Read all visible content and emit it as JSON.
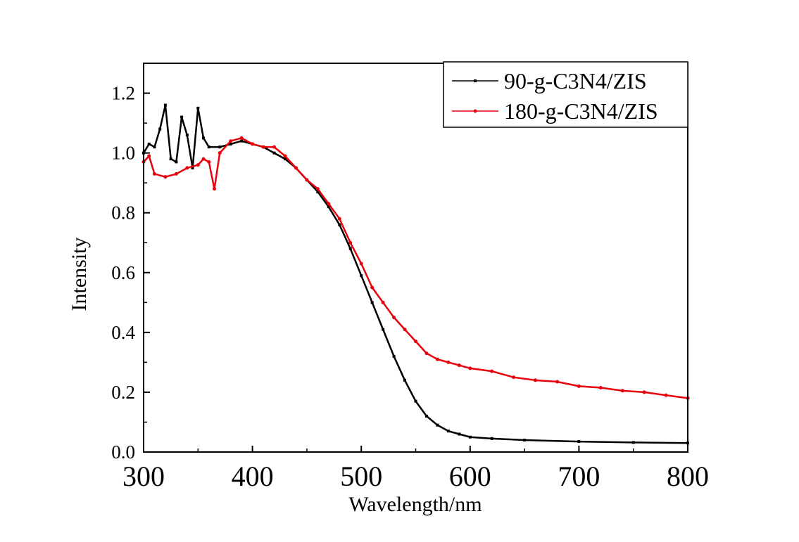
{
  "chart_data": {
    "type": "line",
    "title": "",
    "xlabel": "Wavelength/nm",
    "ylabel": "Intensity",
    "xlim": [
      300,
      800
    ],
    "ylim": [
      0,
      1.3
    ],
    "xticks": [
      300,
      400,
      500,
      600,
      700,
      800
    ],
    "yticks": [
      0.0,
      0.2,
      0.4,
      0.6,
      0.8,
      1.0,
      1.2
    ],
    "ytick_labels": [
      "0.0",
      "0.2",
      "0.4",
      "0.6",
      "0.8",
      "1.0",
      "1.2"
    ],
    "grid": false,
    "legend_position": "top-right",
    "series": [
      {
        "name": "90-g-C3N4/ZIS",
        "color": "#000000",
        "x": [
          300,
          305,
          310,
          315,
          320,
          325,
          330,
          335,
          340,
          345,
          350,
          355,
          360,
          370,
          380,
          390,
          400,
          410,
          420,
          430,
          440,
          450,
          460,
          470,
          480,
          490,
          500,
          510,
          520,
          530,
          540,
          550,
          560,
          570,
          580,
          590,
          600,
          620,
          650,
          700,
          750,
          800
        ],
        "y": [
          1.0,
          1.03,
          1.02,
          1.08,
          1.16,
          0.98,
          0.97,
          1.12,
          1.06,
          0.95,
          1.15,
          1.05,
          1.02,
          1.02,
          1.03,
          1.04,
          1.03,
          1.02,
          1.0,
          0.98,
          0.95,
          0.91,
          0.87,
          0.82,
          0.76,
          0.68,
          0.59,
          0.5,
          0.41,
          0.32,
          0.24,
          0.17,
          0.12,
          0.09,
          0.07,
          0.06,
          0.05,
          0.045,
          0.04,
          0.035,
          0.032,
          0.03
        ]
      },
      {
        "name": "180-g-C3N4/ZIS",
        "color": "#e8000b",
        "x": [
          300,
          305,
          310,
          320,
          330,
          340,
          350,
          355,
          360,
          365,
          370,
          380,
          390,
          400,
          410,
          420,
          430,
          440,
          450,
          460,
          470,
          480,
          490,
          500,
          510,
          520,
          530,
          540,
          550,
          560,
          570,
          580,
          590,
          600,
          620,
          640,
          660,
          680,
          700,
          720,
          740,
          760,
          780,
          800
        ],
        "y": [
          0.97,
          0.99,
          0.93,
          0.92,
          0.93,
          0.95,
          0.96,
          0.98,
          0.97,
          0.88,
          1.0,
          1.04,
          1.05,
          1.03,
          1.02,
          1.02,
          0.99,
          0.95,
          0.91,
          0.88,
          0.83,
          0.78,
          0.7,
          0.63,
          0.55,
          0.5,
          0.45,
          0.41,
          0.37,
          0.33,
          0.31,
          0.3,
          0.29,
          0.28,
          0.27,
          0.25,
          0.24,
          0.235,
          0.22,
          0.215,
          0.205,
          0.2,
          0.19,
          0.18
        ]
      }
    ]
  }
}
